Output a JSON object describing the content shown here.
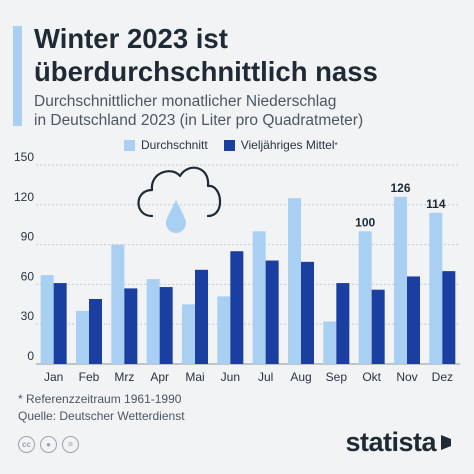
{
  "header": {
    "title_line1": "Winter 2023 ist",
    "title_line2": "überdurchschnittlich nass",
    "subtitle_line1": "Durchschnittlicher monatlicher Niederschlag",
    "subtitle_line2": "in Deutschland 2023 (in Liter pro Quadratmeter)"
  },
  "legend": {
    "series1": "Durchschnitt",
    "series2": "Vieljähriges Mittel",
    "series2_mark": "*"
  },
  "footnote": {
    "line1": "* Referenzzeitraum 1961-1990",
    "line2": "Quelle: Deutscher Wetterdienst"
  },
  "brand": {
    "name": "statista"
  },
  "icons": [
    "cloud-rain-icon",
    "cc-icon",
    "by-icon",
    "equal-icon"
  ],
  "colors": {
    "series1": "#a9cff2",
    "series2": "#1a3fa0",
    "accent": "#a9cff2",
    "background": "#f1f3f4"
  },
  "chart_data": {
    "type": "bar",
    "categories": [
      "Jan",
      "Feb",
      "Mrz",
      "Apr",
      "Mai",
      "Jun",
      "Jul",
      "Aug",
      "Sep",
      "Okt",
      "Nov",
      "Dez"
    ],
    "series": [
      {
        "name": "Durchschnitt",
        "values": [
          67,
          40,
          90,
          64,
          45,
          51,
          100,
          125,
          32,
          100,
          126,
          114
        ]
      },
      {
        "name": "Vieljähriges Mittel*",
        "values": [
          61,
          49,
          57,
          58,
          71,
          85,
          78,
          77,
          61,
          56,
          66,
          70
        ]
      }
    ],
    "data_labels": [
      {
        "category": "Okt",
        "series": "Durchschnitt",
        "text": "100"
      },
      {
        "category": "Nov",
        "series": "Durchschnitt",
        "text": "126"
      },
      {
        "category": "Dez",
        "series": "Durchschnitt",
        "text": "114"
      }
    ],
    "yticks": [
      0,
      30,
      60,
      90,
      120,
      150
    ],
    "ylim": [
      0,
      150
    ],
    "grid": true,
    "legend_position": "top"
  }
}
